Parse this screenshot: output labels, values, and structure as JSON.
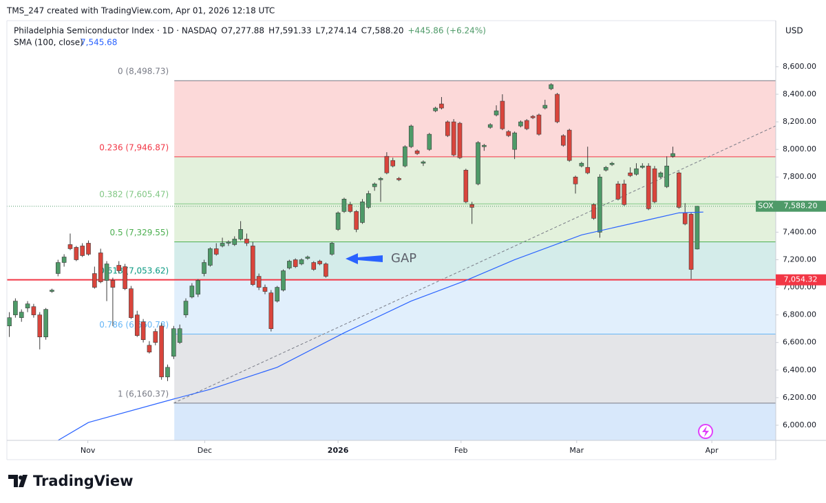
{
  "header": {
    "credit": "TMS_247 created with TradingView.com, Apr 01, 2026 12:18 UTC",
    "symbol": "Philadelphia Semiconductor Index · 1D · NASDAQ",
    "ohlc_labels": [
      "O7,277.88",
      "H7,591.33",
      "L7,274.14",
      "C7,588.20"
    ],
    "change": "+445.86 (+6.24%)",
    "indicator": "SMA (100, close)",
    "indicator_value": "7,545.68",
    "currency": "USD"
  },
  "footer": {
    "brand": "TradingView"
  },
  "chart_data": {
    "type": "candlestick",
    "up_color": "#4e9a68",
    "down_color": "#d9453c",
    "xlim": [
      -0.4,
      125.9
    ],
    "ylim": [
      5890,
      8934
    ],
    "xticks": [
      {
        "value": 12.9,
        "label": "Nov"
      },
      {
        "value": 32.1,
        "label": "Dec"
      },
      {
        "value": 54.0,
        "label": "2026"
      },
      {
        "value": 74.2,
        "label": "Feb"
      },
      {
        "value": 93.2,
        "label": "Mar"
      },
      {
        "value": 115.4,
        "label": "Apr"
      }
    ],
    "yticks": [
      {
        "value": 6000,
        "label": "6,000.00"
      },
      {
        "value": 6200,
        "label": "6,200.00"
      },
      {
        "value": 6400,
        "label": "6,400.00"
      },
      {
        "value": 6600,
        "label": "6,600.00"
      },
      {
        "value": 6800,
        "label": "6,800.00"
      },
      {
        "value": 7000,
        "label": "7,000.00"
      },
      {
        "value": 7200,
        "label": "7,200.00"
      },
      {
        "value": 7400,
        "label": "7,400.00"
      },
      {
        "value": 7600,
        "label": "7,600.00"
      },
      {
        "value": 7800,
        "label": "7,800.00"
      },
      {
        "value": 8000,
        "label": "8,000.00"
      },
      {
        "value": 8200,
        "label": "8,200.00"
      },
      {
        "value": 8400,
        "label": "8,400.00"
      },
      {
        "value": 8600,
        "label": "8,600.00"
      }
    ],
    "open": [
      6720,
      6800,
      6780,
      6850,
      6860,
      6800,
      6640,
      6970,
      7100,
      7180,
      7310,
      7290,
      7300,
      7320,
      7100,
      7250,
      7050,
      7050,
      7160,
      7150,
      6990,
      6800,
      6750,
      6580,
      6680,
      6720,
      6350,
      6500,
      6600,
      6800,
      6930,
      6950,
      7100,
      7160,
      7280,
      7300,
      7320,
      7310,
      7350,
      7350,
      7300,
      7080,
      7000,
      6960,
      6900,
      6980,
      7140,
      7200,
      7170,
      7210,
      7180,
      7190,
      7170,
      7240,
      7420,
      7550,
      7600,
      7550,
      7470,
      7580,
      7730,
      7780,
      7950,
      7920,
      7790,
      7880,
      8020,
      7990,
      7900,
      8000,
      8280,
      8330,
      8200,
      8200,
      8190,
      7850,
      7600,
      7750,
      8020,
      8160,
      8250,
      8350,
      8130,
      8000,
      8170,
      8210,
      8240,
      8250,
      8300,
      8440,
      8400,
      8100,
      8140,
      7800,
      7880,
      7870,
      7600,
      7400,
      7850,
      7890,
      7750,
      7750,
      7830,
      7820,
      7870,
      7880,
      7860,
      7800,
      7730,
      7950,
      7830,
      7540,
      7530,
      7277.88
    ],
    "high": [
      6820,
      6920,
      6840,
      6900,
      6880,
      6820,
      6850,
      6990,
      7200,
      7240,
      7390,
      7300,
      7320,
      7340,
      7150,
      7280,
      7190,
      7070,
      7190,
      7170,
      7010,
      6830,
      6770,
      6610,
      6700,
      6740,
      6440,
      6720,
      6730,
      6920,
      7030,
      7060,
      7200,
      7290,
      7320,
      7360,
      7340,
      7370,
      7480,
      7390,
      7330,
      7100,
      7020,
      6980,
      7010,
      7130,
      7200,
      7210,
      7210,
      7230,
      7190,
      7200,
      7180,
      7330,
      7550,
      7650,
      7620,
      7560,
      7640,
      7700,
      7760,
      7800,
      7980,
      7940,
      7800,
      8030,
      8180,
      8000,
      7920,
      8120,
      8310,
      8380,
      8210,
      8220,
      8200,
      7860,
      7620,
      8060,
      8040,
      8190,
      8320,
      8400,
      8140,
      8130,
      8210,
      8220,
      8250,
      8260,
      8360,
      8480,
      8410,
      8110,
      8150,
      7810,
      7910,
      8020,
      7610,
      7820,
      7880,
      7910,
      7770,
      7780,
      7870,
      7900,
      7900,
      7900,
      7880,
      7840,
      7950,
      8020,
      7840,
      7610,
      7540,
      7591.33
    ],
    "low": [
      6640,
      6780,
      6750,
      6820,
      6780,
      6550,
      6620,
      6960,
      7080,
      7150,
      7270,
      7190,
      7220,
      7230,
      6990,
      7030,
      6900,
      6720,
      7100,
      6980,
      6770,
      6640,
      6600,
      6520,
      6580,
      6330,
      6320,
      6480,
      6590,
      6780,
      6920,
      6930,
      7080,
      7150,
      7230,
      7290,
      7300,
      7300,
      7340,
      7300,
      7010,
      6980,
      6950,
      6680,
      6890,
      6970,
      7130,
      7140,
      7160,
      7200,
      7120,
      7160,
      7070,
      7230,
      7410,
      7540,
      7540,
      7400,
      7460,
      7570,
      7700,
      7620,
      7820,
      7870,
      7770,
      7870,
      8010,
      7960,
      7880,
      7990,
      8270,
      8290,
      8090,
      7950,
      7930,
      7610,
      7460,
      7740,
      7990,
      8150,
      8240,
      8140,
      8090,
      7930,
      8160,
      8140,
      8220,
      8100,
      8290,
      8430,
      8190,
      8020,
      7910,
      7680,
      7870,
      7820,
      7490,
      7360,
      7840,
      7880,
      7630,
      7590,
      7800,
      7810,
      7860,
      7560,
      7610,
      7790,
      7720,
      7940,
      7570,
      7450,
      7060,
      7274.14
    ],
    "close": [
      6780,
      6900,
      6820,
      6880,
      6800,
      6640,
      6840,
      6980,
      7180,
      7220,
      7280,
      7200,
      7230,
      7240,
      7000,
      7040,
      7170,
      7000,
      7120,
      6990,
      6780,
      6650,
      6620,
      6530,
      6600,
      6350,
      6420,
      6700,
      6700,
      6900,
      7010,
      7050,
      7180,
      7280,
      7240,
      7320,
      7330,
      7350,
      7420,
      7320,
      7020,
      7000,
      6970,
      6700,
      7000,
      7120,
      7190,
      7150,
      7200,
      7220,
      7130,
      7170,
      7080,
      7320,
      7540,
      7640,
      7550,
      7420,
      7620,
      7680,
      7750,
      7790,
      7830,
      7880,
      7780,
      8020,
      8170,
      7970,
      7910,
      8110,
      8300,
      8300,
      8100,
      7960,
      7940,
      7620,
      7580,
      8050,
      8030,
      8180,
      8280,
      8150,
      8100,
      8120,
      8200,
      8150,
      8230,
      8110,
      8320,
      8470,
      8200,
      8030,
      7920,
      7750,
      7900,
      7830,
      7500,
      7800,
      7870,
      7900,
      7640,
      7600,
      7810,
      7860,
      7880,
      7570,
      7620,
      7830,
      7880,
      7970,
      7580,
      7460,
      7130,
      7588.2
    ],
    "sma": {
      "name": "SMA (100, close)",
      "color": "#2962ff",
      "x": [
        8,
        13,
        27,
        33,
        44,
        55,
        66,
        75,
        83,
        94,
        105,
        110,
        114
      ],
      "values": [
        5890,
        6020,
        6190,
        6260,
        6420,
        6670,
        6900,
        7050,
        7200,
        7380,
        7490,
        7540,
        7545.68
      ]
    },
    "trend_line": {
      "x": [
        27,
        125.9
      ],
      "values": [
        6160.37,
        8171
      ]
    },
    "fib_start": 27.1,
    "fib_levels": [
      {
        "value": 8498.73,
        "label": "0 (8,498.73)",
        "color": "#787b86",
        "fill": "#fcd9d9"
      },
      {
        "value": 7946.87,
        "label": "0.236 (7,946.87)",
        "color": "#f23645",
        "fill": "#e3f1dc"
      },
      {
        "value": 7605.47,
        "label": "0.382 (7,605.47)",
        "color": "#81c784",
        "fill": "#e3f1dc"
      },
      {
        "value": 7329.55,
        "label": "0.5 (7,329.55)",
        "color": "#4caf50",
        "fill": "#d4ecea"
      },
      {
        "value": 7053.62,
        "label": "0.618 (7,053.62)",
        "color": "#089981",
        "fill": "#e1effc"
      },
      {
        "value": 6660.78,
        "label": "0.786 (6,660.78)",
        "color": "#64b5f6",
        "fill": "#e4e5e8"
      },
      {
        "value": 6160.37,
        "label": "1 (6,160.37)",
        "color": "#787b86",
        "fill": "#d8e8fb"
      }
    ],
    "support": {
      "value": 7054.32,
      "label": "7,054.32",
      "color": "#f23645"
    },
    "last_price": {
      "symbol": "SOX",
      "label": "7,588.20",
      "color": "#4e9a68"
    },
    "annotation": "GAP"
  }
}
